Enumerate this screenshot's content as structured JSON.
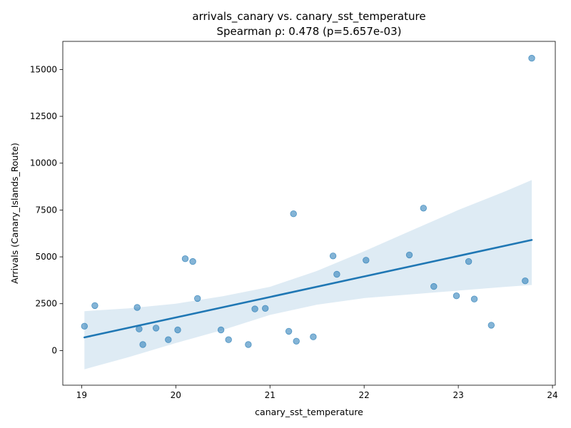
{
  "chart_data": {
    "type": "scatter",
    "title": "arrivals_canary vs. canary_sst_temperature",
    "subtitle": "Spearman ρ: 0.478 (p=5.657e-03)",
    "xlabel": "canary_sst_temperature",
    "ylabel": "Arrivals (Canary_Islands_Route)",
    "xlim": [
      18.8,
      24.03
    ],
    "ylim": [
      -1850,
      16500
    ],
    "xticks": [
      19,
      20,
      21,
      22,
      23,
      24
    ],
    "yticks": [
      0,
      2500,
      5000,
      7500,
      10000,
      12500,
      15000
    ],
    "grid": false,
    "colors": {
      "points": "#1f77b4",
      "line": "#1f77b4",
      "band": "#1f77b4"
    },
    "points": [
      {
        "x": 19.03,
        "y": 1300
      },
      {
        "x": 19.14,
        "y": 2400
      },
      {
        "x": 19.59,
        "y": 2300
      },
      {
        "x": 19.61,
        "y": 1150
      },
      {
        "x": 19.65,
        "y": 320
      },
      {
        "x": 19.79,
        "y": 1200
      },
      {
        "x": 19.92,
        "y": 580
      },
      {
        "x": 20.02,
        "y": 1100
      },
      {
        "x": 20.1,
        "y": 4900
      },
      {
        "x": 20.18,
        "y": 4750
      },
      {
        "x": 20.23,
        "y": 2780
      },
      {
        "x": 20.48,
        "y": 1100
      },
      {
        "x": 20.56,
        "y": 580
      },
      {
        "x": 20.77,
        "y": 320
      },
      {
        "x": 20.84,
        "y": 2220
      },
      {
        "x": 20.95,
        "y": 2250
      },
      {
        "x": 21.2,
        "y": 1030
      },
      {
        "x": 21.25,
        "y": 7300
      },
      {
        "x": 21.28,
        "y": 500
      },
      {
        "x": 21.46,
        "y": 730
      },
      {
        "x": 21.67,
        "y": 5050
      },
      {
        "x": 21.71,
        "y": 4070
      },
      {
        "x": 22.02,
        "y": 4820
      },
      {
        "x": 22.48,
        "y": 5100
      },
      {
        "x": 22.63,
        "y": 7600
      },
      {
        "x": 22.74,
        "y": 3420
      },
      {
        "x": 22.98,
        "y": 2920
      },
      {
        "x": 23.11,
        "y": 4750
      },
      {
        "x": 23.17,
        "y": 2750
      },
      {
        "x": 23.35,
        "y": 1350
      },
      {
        "x": 23.71,
        "y": 3720
      },
      {
        "x": 23.78,
        "y": 15600
      }
    ],
    "regression": {
      "x": [
        19.03,
        23.78
      ],
      "y": [
        700,
        5900
      ]
    },
    "confidence_band": {
      "x": [
        19.03,
        19.5,
        20.0,
        20.5,
        21.0,
        21.5,
        22.0,
        22.5,
        23.0,
        23.5,
        23.78
      ],
      "upper": [
        2100,
        2250,
        2500,
        2900,
        3400,
        4250,
        5300,
        6400,
        7500,
        8500,
        9100
      ],
      "lower": [
        -1000,
        -350,
        400,
        1100,
        1900,
        2450,
        2800,
        3000,
        3200,
        3400,
        3500
      ]
    }
  }
}
